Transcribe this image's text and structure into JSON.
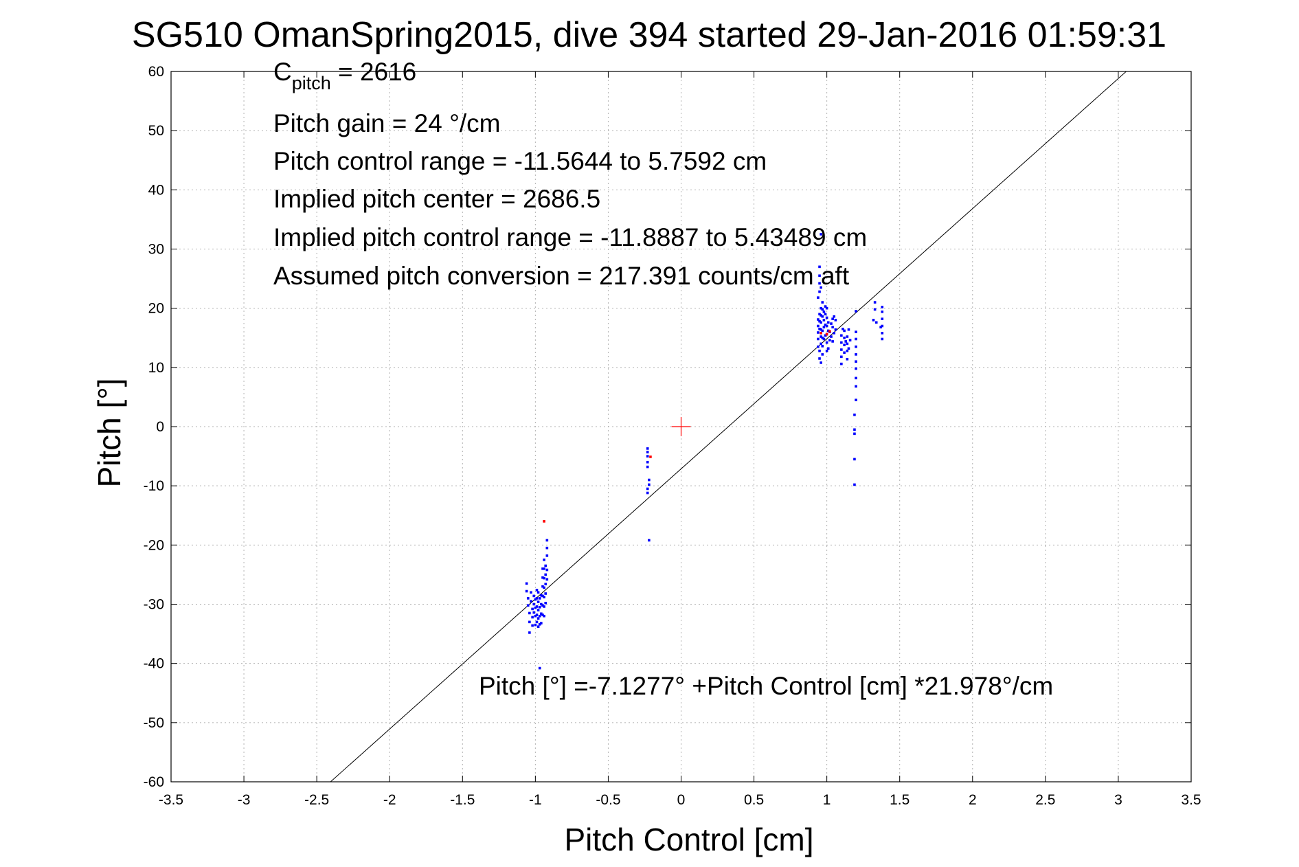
{
  "chart_data": {
    "type": "scatter",
    "title": "SG510 OmanSpring2015, dive 394 started 29-Jan-2016 01:59:31",
    "xlabel": "Pitch Control [cm]",
    "ylabel": "Pitch [°]",
    "xlim": [
      -3.5,
      3.5
    ],
    "ylim": [
      -60,
      60
    ],
    "xticks": [
      -3.5,
      -3,
      -2.5,
      -2,
      -1.5,
      -1,
      -0.5,
      0,
      0.5,
      1,
      1.5,
      2,
      2.5,
      3,
      3.5
    ],
    "yticks": [
      -60,
      -50,
      -40,
      -30,
      -20,
      -10,
      0,
      10,
      20,
      30,
      40,
      50,
      60
    ],
    "xtick_labels": [
      "-3.5",
      "-3",
      "-2.5",
      "-2",
      "-1.5",
      "-1",
      "-0.5",
      "0",
      "0.5",
      "1",
      "1.5",
      "2",
      "2.5",
      "3",
      "3.5"
    ],
    "ytick_labels": [
      "-60",
      "-50",
      "-40",
      "-30",
      "-20",
      "-10",
      "0",
      "10",
      "20",
      "30",
      "40",
      "50",
      "60"
    ],
    "grid": true,
    "colors": {
      "data_points": "#0000ff",
      "outlier_points": "#ff0000",
      "fit_line": "#000000",
      "origin_marker": "#ff0000",
      "grid": "#b0b0b0"
    },
    "annotations": {
      "c_pitch_symbol": "C",
      "c_pitch_subscript": "pitch",
      "c_pitch_value": " = 2616",
      "pitch_gain": "Pitch gain = 24 °/cm",
      "pitch_control_range": "Pitch control range = -11.5644 to 5.7592 cm",
      "implied_pitch_center": "Implied pitch center = 2686.5",
      "implied_pitch_control_range": "Implied pitch control range = -11.8887 to 5.43489 cm",
      "assumed_pitch_conversion": "Assumed pitch conversion = 217.391 counts/cm aft",
      "fit_equation": "Pitch [°] =-7.1277° +Pitch Control [cm] *21.978°/cm"
    },
    "fit": {
      "intercept": -7.1277,
      "slope": 21.978
    },
    "origin_marker": {
      "x": 0,
      "y": 0
    },
    "series": [
      {
        "name": "blue samples",
        "points": [
          [
            -1.06,
            -26.5
          ],
          [
            -1.06,
            -27.8
          ],
          [
            -1.05,
            -29.0
          ],
          [
            -1.05,
            -30.2
          ],
          [
            -1.04,
            -31.5
          ],
          [
            -1.04,
            -33.0
          ],
          [
            -1.04,
            -34.8
          ],
          [
            -1.03,
            -28.0
          ],
          [
            -1.03,
            -29.5
          ],
          [
            -1.02,
            -30.8
          ],
          [
            -1.02,
            -32.2
          ],
          [
            -1.02,
            -33.6
          ],
          [
            -1.01,
            -28.6
          ],
          [
            -1.01,
            -30.0
          ],
          [
            -1.01,
            -31.4
          ],
          [
            -1.0,
            -29.2
          ],
          [
            -1.0,
            -30.6
          ],
          [
            -1.0,
            -32.0
          ],
          [
            -1.0,
            -33.5
          ],
          [
            -0.99,
            -27.6
          ],
          [
            -0.99,
            -29.0
          ],
          [
            -0.99,
            -30.4
          ],
          [
            -0.99,
            -31.8
          ],
          [
            -0.99,
            -33.0
          ],
          [
            -0.98,
            -28.0
          ],
          [
            -0.98,
            -29.6
          ],
          [
            -0.98,
            -31.0
          ],
          [
            -0.98,
            -32.4
          ],
          [
            -0.98,
            -33.8
          ],
          [
            -0.97,
            -29.0
          ],
          [
            -0.97,
            -30.5
          ],
          [
            -0.97,
            -32.0
          ],
          [
            -0.97,
            -33.4
          ],
          [
            -0.96,
            -28.5
          ],
          [
            -0.96,
            -30.0
          ],
          [
            -0.96,
            -31.6
          ],
          [
            -0.96,
            -33.2
          ],
          [
            -0.97,
            -40.8
          ],
          [
            -0.95,
            -24.0
          ],
          [
            -0.95,
            -25.5
          ],
          [
            -0.95,
            -27.0
          ],
          [
            -0.95,
            -28.6
          ],
          [
            -0.95,
            -30.2
          ],
          [
            -0.95,
            -31.8
          ],
          [
            -0.94,
            -22.5
          ],
          [
            -0.94,
            -24.0
          ],
          [
            -0.94,
            -25.6
          ],
          [
            -0.94,
            -27.2
          ],
          [
            -0.94,
            -28.8
          ],
          [
            -0.94,
            -30.4
          ],
          [
            -0.94,
            -32.0
          ],
          [
            -0.93,
            -23.5
          ],
          [
            -0.93,
            -25.0
          ],
          [
            -0.93,
            -26.6
          ],
          [
            -0.93,
            -28.2
          ],
          [
            -0.93,
            -29.8
          ],
          [
            -0.92,
            -24.2
          ],
          [
            -0.92,
            -25.8
          ],
          [
            -0.92,
            -19.2
          ],
          [
            -0.92,
            -20.5
          ],
          [
            -0.92,
            -21.8
          ],
          [
            -0.23,
            -3.7
          ],
          [
            -0.23,
            -4.3
          ],
          [
            -0.23,
            -5.0
          ],
          [
            -0.23,
            -6.0
          ],
          [
            -0.23,
            -6.8
          ],
          [
            -0.22,
            -9.0
          ],
          [
            -0.22,
            -9.8
          ],
          [
            -0.23,
            -10.5
          ],
          [
            -0.23,
            -11.2
          ],
          [
            -0.22,
            -19.2
          ],
          [
            0.94,
            13.5
          ],
          [
            0.94,
            14.8
          ],
          [
            0.94,
            15.9
          ],
          [
            0.94,
            17.0
          ],
          [
            0.94,
            18.1
          ],
          [
            0.94,
            21.8
          ],
          [
            0.95,
            11.5
          ],
          [
            0.95,
            12.8
          ],
          [
            0.95,
            16.5
          ],
          [
            0.95,
            17.8
          ],
          [
            0.95,
            19.0
          ],
          [
            0.95,
            22.8
          ],
          [
            0.95,
            24.2
          ],
          [
            0.95,
            25.5
          ],
          [
            0.95,
            27.0
          ],
          [
            0.96,
            10.8
          ],
          [
            0.96,
            14.0
          ],
          [
            0.96,
            15.2
          ],
          [
            0.96,
            16.4
          ],
          [
            0.96,
            17.6
          ],
          [
            0.96,
            18.8
          ],
          [
            0.96,
            20.0
          ],
          [
            0.96,
            23.5
          ],
          [
            0.96,
            32.5
          ],
          [
            0.97,
            12.2
          ],
          [
            0.97,
            13.6
          ],
          [
            0.97,
            15.0
          ],
          [
            0.97,
            16.2
          ],
          [
            0.97,
            18.6
          ],
          [
            0.97,
            19.8
          ],
          [
            0.97,
            21.0
          ],
          [
            0.98,
            14.8
          ],
          [
            0.98,
            16.8
          ],
          [
            0.98,
            18.0
          ],
          [
            0.98,
            19.4
          ],
          [
            0.99,
            15.4
          ],
          [
            0.99,
            17.2
          ],
          [
            0.99,
            19.0
          ],
          [
            0.99,
            20.3
          ],
          [
            1.0,
            12.8
          ],
          [
            1.0,
            14.2
          ],
          [
            1.0,
            15.6
          ],
          [
            1.0,
            17.0
          ],
          [
            1.0,
            18.4
          ],
          [
            1.0,
            20.0
          ],
          [
            1.01,
            13.2
          ],
          [
            1.01,
            16.2
          ],
          [
            1.01,
            17.6
          ],
          [
            1.02,
            14.6
          ],
          [
            1.02,
            16.0
          ],
          [
            1.03,
            15.2
          ],
          [
            1.03,
            17.4
          ],
          [
            1.04,
            14.4
          ],
          [
            1.04,
            16.8
          ],
          [
            1.04,
            18.2
          ],
          [
            1.05,
            15.8
          ],
          [
            1.05,
            18.6
          ],
          [
            1.06,
            16.4
          ],
          [
            1.06,
            18.0
          ],
          [
            1.1,
            10.6
          ],
          [
            1.1,
            11.8
          ],
          [
            1.1,
            13.0
          ],
          [
            1.1,
            14.2
          ],
          [
            1.1,
            15.4
          ],
          [
            1.11,
            16.5
          ],
          [
            1.12,
            12.5
          ],
          [
            1.12,
            13.8
          ],
          [
            1.12,
            15.0
          ],
          [
            1.12,
            16.2
          ],
          [
            1.13,
            14.4
          ],
          [
            1.14,
            11.4
          ],
          [
            1.14,
            12.8
          ],
          [
            1.14,
            14.0
          ],
          [
            1.14,
            15.2
          ],
          [
            1.15,
            16.4
          ],
          [
            1.15,
            13.2
          ],
          [
            1.16,
            14.6
          ],
          [
            1.19,
            -9.8
          ],
          [
            1.19,
            -5.5
          ],
          [
            1.19,
            -1.2
          ],
          [
            1.19,
            -0.5
          ],
          [
            1.19,
            2.0
          ],
          [
            1.2,
            4.5
          ],
          [
            1.2,
            6.8
          ],
          [
            1.2,
            8.2
          ],
          [
            1.2,
            9.8
          ],
          [
            1.2,
            11.0
          ],
          [
            1.2,
            12.2
          ],
          [
            1.2,
            13.5
          ],
          [
            1.2,
            14.8
          ],
          [
            1.2,
            16.0
          ],
          [
            1.2,
            19.5
          ],
          [
            1.32,
            18.0
          ],
          [
            1.33,
            21.0
          ],
          [
            1.33,
            19.8
          ],
          [
            1.34,
            17.6
          ],
          [
            1.37,
            16.8
          ],
          [
            1.38,
            14.8
          ],
          [
            1.38,
            15.8
          ],
          [
            1.38,
            17.0
          ],
          [
            1.38,
            18.2
          ],
          [
            1.38,
            19.4
          ],
          [
            1.38,
            20.2
          ]
        ]
      },
      {
        "name": "red samples",
        "points": [
          [
            -0.94,
            -16.0
          ],
          [
            -0.21,
            -5.1
          ],
          [
            0.96,
            15.8
          ],
          [
            1.0,
            15.6
          ],
          [
            1.02,
            16.1
          ]
        ]
      }
    ]
  }
}
